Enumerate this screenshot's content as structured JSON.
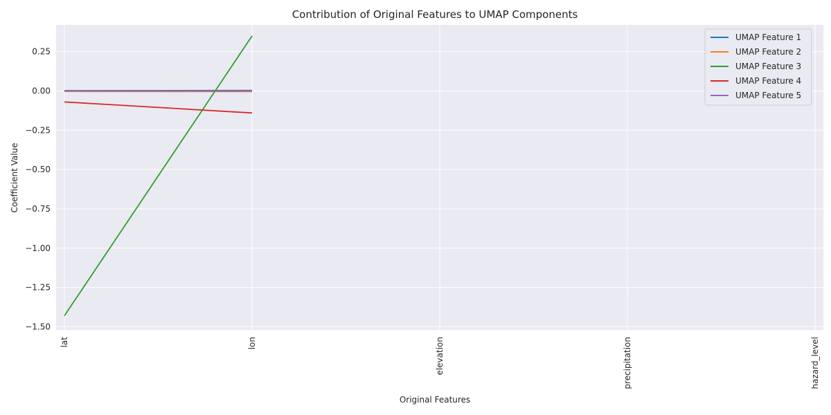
{
  "chart_data": {
    "type": "line",
    "title": "Contribution of Original Features to UMAP Components",
    "xlabel": "Original Features",
    "ylabel": "Coefficient Value",
    "categories": [
      "lat",
      "lon",
      "elevation",
      "precipitation",
      "hazard_level"
    ],
    "ylim": [
      -1.52,
      0.42
    ],
    "yticks": [
      0.25,
      0.0,
      -0.25,
      -0.5,
      -0.75,
      -1.0,
      -1.25,
      -1.5
    ],
    "ytick_labels": [
      "0.25",
      "0.00",
      "−0.25",
      "−0.50",
      "−0.75",
      "−1.00",
      "−1.25",
      "−1.50"
    ],
    "grid": true,
    "legend_position": "top-right",
    "series": [
      {
        "name": "UMAP Feature 1",
        "color": "#1f77b4",
        "values": [
          0.002,
          0.003,
          null,
          null,
          null
        ]
      },
      {
        "name": "UMAP Feature 2",
        "color": "#ff7f0e",
        "values": [
          -0.003,
          -0.004,
          null,
          null,
          null
        ]
      },
      {
        "name": "UMAP Feature 3",
        "color": "#2ca02c",
        "values": [
          -1.43,
          0.35,
          null,
          null,
          null
        ]
      },
      {
        "name": "UMAP Feature 4",
        "color": "#d62728",
        "values": [
          -0.07,
          -0.14,
          null,
          null,
          null
        ]
      },
      {
        "name": "UMAP Feature 5",
        "color": "#9467bd",
        "values": [
          0.0,
          0.0,
          null,
          null,
          null
        ]
      }
    ]
  }
}
